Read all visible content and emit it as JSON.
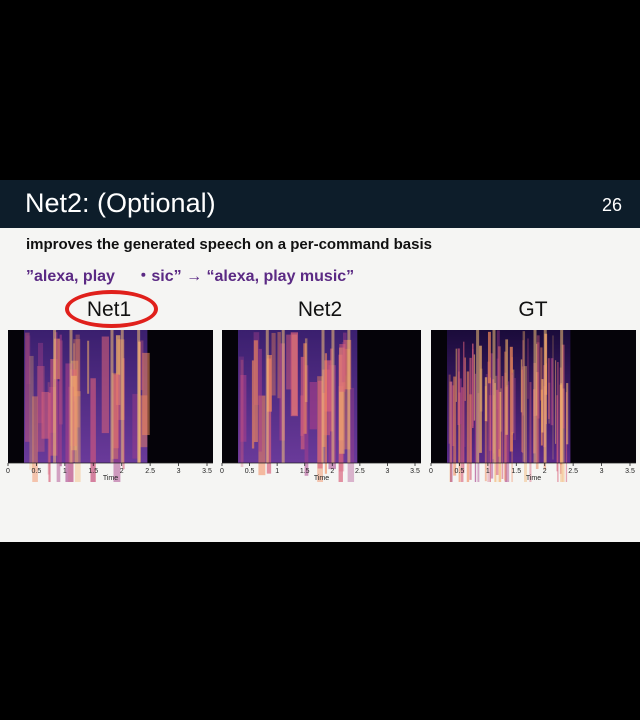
{
  "slide": {
    "title": "Net2: (Optional)",
    "page_number": "26",
    "subtitle": "improves the generated speech on a per-command basis",
    "quote": "”alexa, play 　・sic” → “alexa, play music”"
  },
  "panels": [
    {
      "title": "Net1",
      "circled": true
    },
    {
      "title": "Net2",
      "circled": false
    },
    {
      "title": "GT",
      "circled": false
    }
  ],
  "axis": {
    "xlabel": "Time",
    "ticks": [
      "0",
      "0.5",
      "1",
      "1.5",
      "2",
      "2.5",
      "3",
      "3.5"
    ]
  },
  "colors": {
    "titlebar": "#0d1d2a",
    "quote": "#5b2a84",
    "ring": "#e0201b"
  }
}
